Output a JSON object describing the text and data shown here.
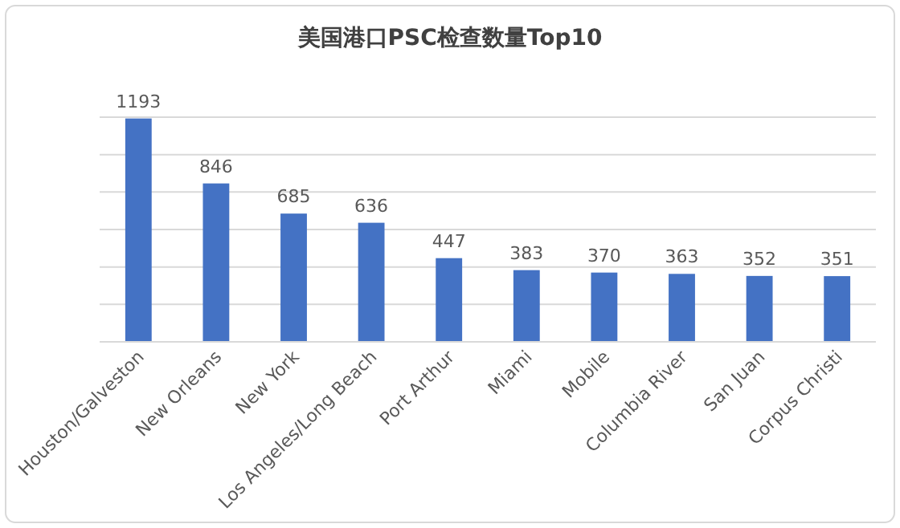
{
  "chart_data": {
    "type": "bar",
    "title": "美国港口PSC检查数量Top10",
    "categories": [
      "Houston/Galveston",
      "New Orleans",
      "New York",
      "Los Angeles/Long Beach",
      "Port Arthur",
      "Miami",
      "Mobile",
      "Columbia River",
      "San Juan",
      "Corpus Christi"
    ],
    "values": [
      1193,
      846,
      685,
      636,
      447,
      383,
      370,
      363,
      352,
      351
    ],
    "color": "#4472c4",
    "ylim": [
      0,
      1200
    ],
    "yticks": [
      {
        "value": 0,
        "label": null
      },
      {
        "value": 200,
        "label": null
      },
      {
        "value": 400,
        "label": null
      },
      {
        "value": 600,
        "label": null
      },
      {
        "value": 800,
        "label": null
      },
      {
        "value": 1000,
        "label": null
      },
      {
        "value": 1200,
        "label": null
      }
    ],
    "tick_labels": "x",
    "grid": "y",
    "data_labels": true
  }
}
